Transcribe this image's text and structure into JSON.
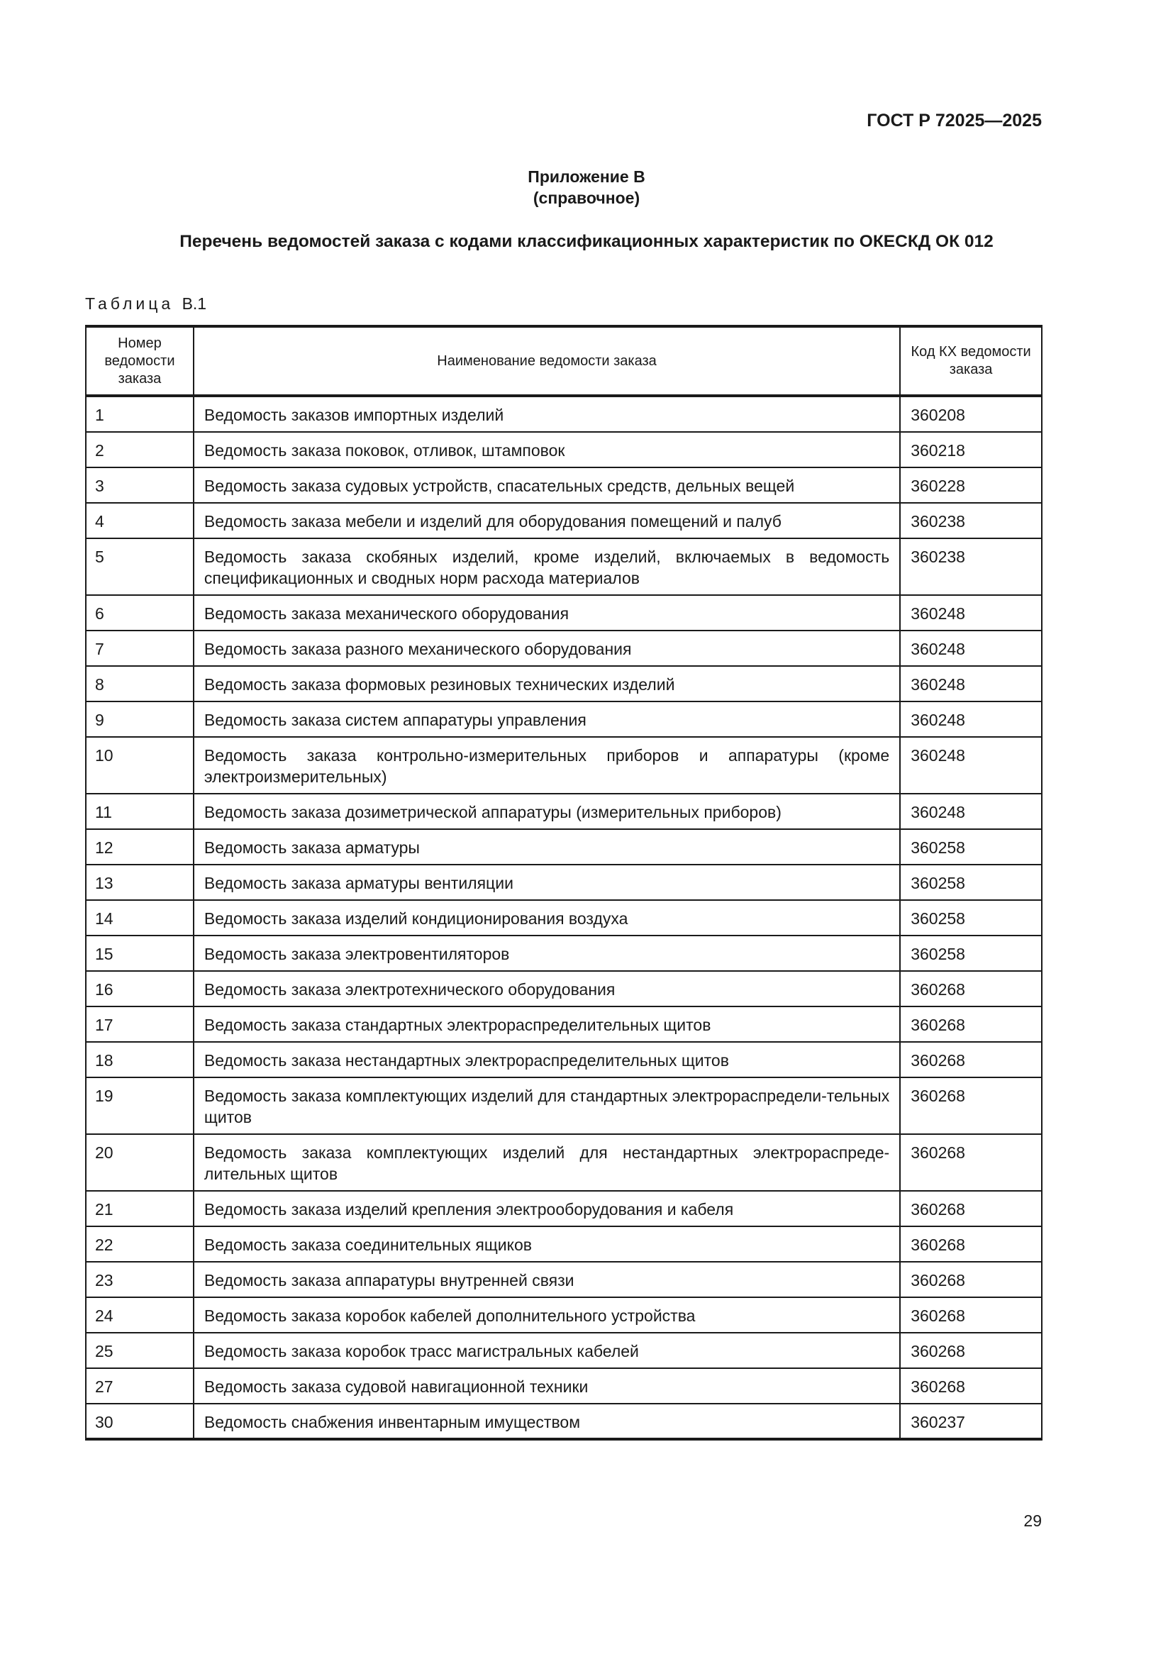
{
  "header": {
    "doc_code": "ГОСТ Р 72025—2025"
  },
  "annex": {
    "title": "Приложение В",
    "subtitle": "(справочное)"
  },
  "heading": "Перечень ведомостей заказа с кодами классификационных характеристик по ОКЕСКД ОК 012",
  "table": {
    "caption_word": "Таблица",
    "caption_num": "В.1",
    "columns": [
      "Номер ведомости заказа",
      "Наименование ведомости заказа",
      "Код КХ ведомости заказа"
    ],
    "rows": [
      {
        "num": "1",
        "name": "Ведомость заказов импортных изделий",
        "code": "360208"
      },
      {
        "num": "2",
        "name": "Ведомость заказа поковок, отливок, штамповок",
        "code": "360218"
      },
      {
        "num": "3",
        "name": "Ведомость заказа судовых устройств, спасательных средств, дельных вещей",
        "code": "360228"
      },
      {
        "num": "4",
        "name": "Ведомость заказа мебели и изделий для оборудования помещений и палуб",
        "code": "360238"
      },
      {
        "num": "5",
        "name": "Ведомость заказа скобяных изделий, кроме изделий, включаемых в ведомость спецификационных и сводных норм расхода материалов",
        "code": "360238"
      },
      {
        "num": "6",
        "name": "Ведомость заказа механического оборудования",
        "code": "360248"
      },
      {
        "num": "7",
        "name": "Ведомость заказа разного механического оборудования",
        "code": "360248"
      },
      {
        "num": "8",
        "name": "Ведомость заказа формовых резиновых технических изделий",
        "code": "360248"
      },
      {
        "num": "9",
        "name": "Ведомость заказа систем аппаратуры управления",
        "code": "360248"
      },
      {
        "num": "10",
        "name": "Ведомость заказа контрольно-измерительных приборов и аппаратуры (кроме электроизмерительных)",
        "code": "360248"
      },
      {
        "num": "11",
        "name": "Ведомость заказа дозиметрической аппаратуры (измерительных приборов)",
        "code": "360248"
      },
      {
        "num": "12",
        "name": "Ведомость заказа арматуры",
        "code": "360258"
      },
      {
        "num": "13",
        "name": "Ведомость заказа арматуры вентиляции",
        "code": "360258"
      },
      {
        "num": "14",
        "name": "Ведомость заказа изделий кондиционирования воздуха",
        "code": "360258"
      },
      {
        "num": "15",
        "name": "Ведомость заказа электровентиляторов",
        "code": "360258"
      },
      {
        "num": "16",
        "name": "Ведомость заказа электротехнического оборудования",
        "code": "360268"
      },
      {
        "num": "17",
        "name": "Ведомость заказа стандартных электрораспределительных щитов",
        "code": "360268"
      },
      {
        "num": "18",
        "name": "Ведомость заказа нестандартных электрораспределительных щитов",
        "code": "360268"
      },
      {
        "num": "19",
        "name": "Ведомость заказа комплектующих изделий для стандартных электрораспредели-тельных щитов",
        "code": "360268"
      },
      {
        "num": "20",
        "name": "Ведомость заказа комплектующих изделий для нестандартных электрораспреде-лительных щитов",
        "code": "360268"
      },
      {
        "num": "21",
        "name": "Ведомость заказа изделий крепления электрооборудования и кабеля",
        "code": "360268"
      },
      {
        "num": "22",
        "name": "Ведомость заказа соединительных ящиков",
        "code": "360268"
      },
      {
        "num": "23",
        "name": "Ведомость заказа аппаратуры внутренней связи",
        "code": "360268"
      },
      {
        "num": "24",
        "name": "Ведомость заказа коробок кабелей дополнительного устройства",
        "code": "360268"
      },
      {
        "num": "25",
        "name": "Ведомость заказа коробок трасс магистральных кабелей",
        "code": "360268"
      },
      {
        "num": "27",
        "name": "Ведомость заказа судовой навигационной техники",
        "code": "360268"
      },
      {
        "num": "30",
        "name": "Ведомость снабжения инвентарным имуществом",
        "code": "360237"
      }
    ]
  },
  "footer": {
    "page_number": "29"
  }
}
